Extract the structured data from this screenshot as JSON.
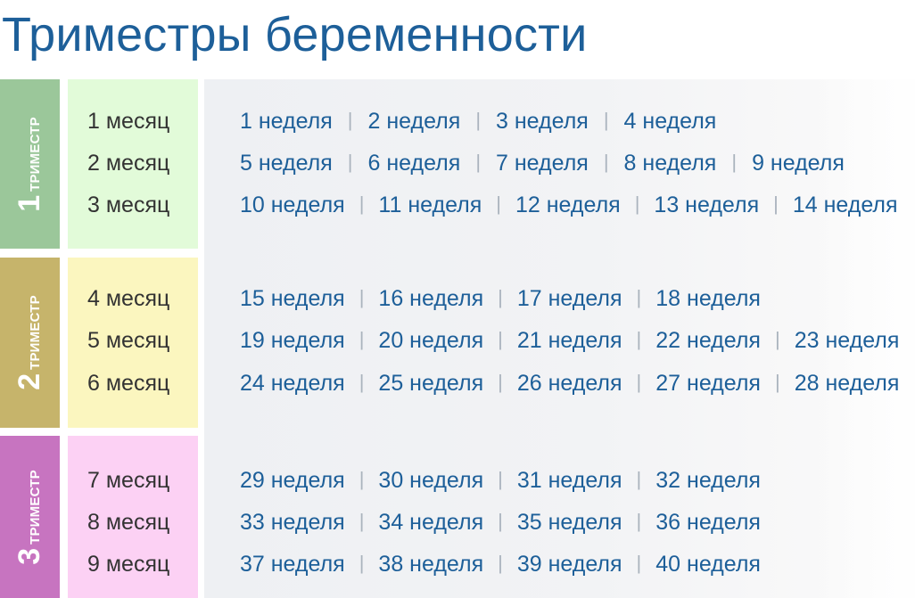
{
  "title": "Триместры беременности",
  "colors": {
    "title": "#1d5f99",
    "weeks_text": "#1d5f99",
    "trimester1_tab": "#9bc79a",
    "trimester1_months_bg": "#e2fbd9",
    "trimester2_tab": "#c6b46b",
    "trimester2_months_bg": "#fbf6bf",
    "trimester3_tab": "#c774c0",
    "trimester3_months_bg": "#fcd1f4"
  },
  "trimesters": [
    {
      "number": "1",
      "word": "ТРИМЕСТР",
      "months": [
        "1 месяц",
        "2 месяц",
        "3 месяц"
      ],
      "weeks": [
        [
          "1 неделя",
          "2 неделя",
          "3 неделя",
          "4 неделя"
        ],
        [
          "5 неделя",
          "6 неделя",
          "7 неделя",
          "8 неделя",
          "9 неделя"
        ],
        [
          "10 неделя",
          "11 неделя",
          "12 неделя",
          "13 неделя",
          "14 неделя"
        ]
      ]
    },
    {
      "number": "2",
      "word": "ТРИМЕСТР",
      "months": [
        "4 месяц",
        "5 месяц",
        "6 месяц"
      ],
      "weeks": [
        [
          "15 неделя",
          "16 неделя",
          "17 неделя",
          "18 неделя"
        ],
        [
          "19 неделя",
          "20 неделя",
          "21 неделя",
          "22 неделя",
          "23 неделя"
        ],
        [
          "24 неделя",
          "25 неделя",
          "26 неделя",
          "27 неделя",
          "28 неделя"
        ]
      ]
    },
    {
      "number": "3",
      "word": "ТРИМЕСТР",
      "months": [
        "7 месяц",
        "8 месяц",
        "9 месяц"
      ],
      "weeks": [
        [
          "29 неделя",
          "30 неделя",
          "31 неделя",
          "32 неделя"
        ],
        [
          "33 неделя",
          "34 неделя",
          "35 неделя",
          "36 неделя"
        ],
        [
          "37 неделя",
          "38 неделя",
          "39 неделя",
          "40 неделя"
        ]
      ]
    }
  ]
}
